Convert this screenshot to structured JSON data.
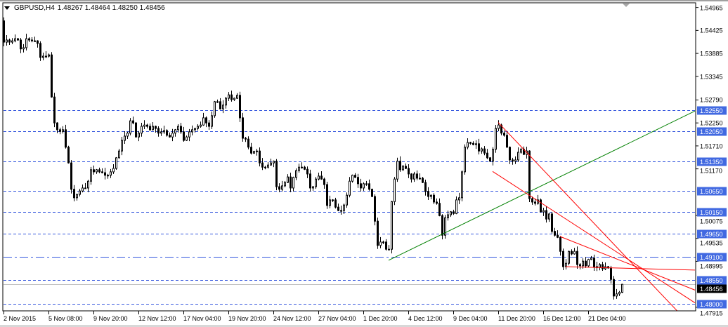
{
  "header": {
    "symbol_timeframe": "GBPUSD,H4",
    "ohlc": "1.48267 1.48464 1.48250 1.48456"
  },
  "colors": {
    "level_line": "#3355dd",
    "level_label_bg": "#4169e1",
    "trendline_green": "#008000",
    "trendline_red": "#ff0000",
    "current_price_bg": "#000000",
    "bull_body": "#ffffff",
    "bear_body": "#000000"
  },
  "chart_data": {
    "type": "candlestick",
    "symbol": "GBPUSD",
    "timeframe": "H4",
    "last_bar": {
      "open": 1.48267,
      "high": 1.48464,
      "low": 1.4825,
      "close": 1.48456
    },
    "first_open": 1.5465,
    "closes": [
      1.5415,
      1.542,
      1.5415,
      1.5418,
      1.5423,
      1.542,
      1.5399,
      1.5402,
      1.5423,
      1.542,
      1.5418,
      1.5418,
      1.5412,
      1.5379,
      1.5382,
      1.5382,
      1.5385,
      1.5286,
      1.5225,
      1.5209,
      1.5205,
      1.5209,
      1.5168,
      1.5131,
      1.5069,
      1.5049,
      1.5057,
      1.5065,
      1.5072,
      1.5072,
      1.5088,
      1.5115,
      1.511,
      1.5115,
      1.511,
      1.5108,
      1.5102,
      1.5102,
      1.511,
      1.5118,
      1.5143,
      1.5159,
      1.5184,
      1.5194,
      1.5201,
      1.523,
      1.5225,
      1.5192,
      1.5201,
      1.5217,
      1.522,
      1.5217,
      1.5209,
      1.5217,
      1.5212,
      1.5201,
      1.5204,
      1.5207,
      1.5196,
      1.5192,
      1.5201,
      1.5209,
      1.5217,
      1.5204,
      1.5184,
      1.5192,
      1.5204,
      1.5209,
      1.5212,
      1.5217,
      1.522,
      1.5237,
      1.5225,
      1.5217,
      1.5242,
      1.5275,
      1.5275,
      1.5258,
      1.5267,
      1.5283,
      1.5291,
      1.528,
      1.5283,
      1.529,
      1.5237,
      1.5189,
      1.5187,
      1.5168,
      1.5154,
      1.5158,
      1.5159,
      1.5131,
      1.5121,
      1.5121,
      1.5126,
      1.5131,
      1.5135,
      1.5075,
      1.5069,
      1.5077,
      1.5085,
      1.5098,
      1.5072,
      1.5097,
      1.5113,
      1.5121,
      1.5121,
      1.5116,
      1.5105,
      1.5072,
      1.5075,
      1.5093,
      1.51,
      1.5093,
      1.508,
      1.5031,
      1.5044,
      1.5044,
      1.5027,
      1.5019,
      1.5019,
      1.5032,
      1.5055,
      1.5088,
      1.5102,
      1.5097,
      1.5082,
      1.5072,
      1.5082,
      1.5082,
      1.5069,
      1.5052,
      1.4994,
      1.4937,
      1.4945,
      1.4945,
      1.4928,
      1.4928,
      1.504,
      1.5093,
      1.5135,
      1.5115,
      1.5123,
      1.5118,
      1.5105,
      1.5093,
      1.5105,
      1.5095,
      1.5095,
      1.5085,
      1.5064,
      1.5052,
      1.5055,
      1.5039,
      1.5036,
      1.5007,
      1.4961,
      1.5002,
      1.5009,
      1.5016,
      1.5012,
      1.5044,
      1.5049,
      1.511,
      1.5168,
      1.5179,
      1.5177,
      1.5174,
      1.5176,
      1.5159,
      1.5164,
      1.5154,
      1.5143,
      1.5135,
      1.5163,
      1.5212,
      1.522,
      1.5201,
      1.5196,
      1.5168,
      1.5138,
      1.5135,
      1.5138,
      1.5156,
      1.5163,
      1.5151,
      1.5159,
      1.5047,
      1.5039,
      1.5036,
      1.5044,
      1.5016,
      1.5019,
      1.4999,
      1.5011,
      1.497,
      1.4961,
      1.4956,
      1.4923,
      1.4887,
      1.4895,
      1.4923,
      1.4917,
      1.4923,
      1.4892,
      1.4889,
      1.49,
      1.4889,
      1.4904,
      1.4907,
      1.4887,
      1.4885,
      1.4892,
      1.4882,
      1.4887,
      1.4884,
      1.4857,
      1.4818,
      1.4823,
      1.48267,
      1.48456
    ],
    "y_ticks": [
      "1.54965",
      "1.54425",
      "1.53885",
      "1.53345",
      "1.52790",
      "1.52250",
      "1.51710",
      "1.51170",
      "1.50075",
      "1.49535",
      "1.48995",
      "1.47915"
    ],
    "x_ticks": [
      "2 Nov 2015",
      "5 Nov 08:00",
      "9 Nov 20:00",
      "12 Nov 12:00",
      "17 Nov 04:00",
      "19 Nov 20:00",
      "24 Nov 12:00",
      "27 Nov 04:00",
      "1 Dec 20:00",
      "4 Dec 12:00",
      "9 Dec 04:00",
      "11 Dec 20:00",
      "16 Dec 12:00",
      "21 Dec 04:00"
    ],
    "horizontal_levels": [
      {
        "price": "1.52550",
        "style": "dash"
      },
      {
        "price": "1.52050",
        "style": "dash"
      },
      {
        "price": "1.51350",
        "style": "dash"
      },
      {
        "price": "1.50650",
        "style": "dash"
      },
      {
        "price": "1.50150",
        "style": "dash"
      },
      {
        "price": "1.49650",
        "style": "dash"
      },
      {
        "price": "1.49100",
        "style": "dash-dot"
      },
      {
        "price": "1.48550",
        "style": "dash"
      },
      {
        "price": "1.48000",
        "style": "dash"
      }
    ],
    "current_price": "1.48456",
    "trendlines": [
      {
        "color": "green",
        "from": {
          "bar": 137,
          "price": 1.4902
        },
        "to": {
          "bar": 246,
          "price": 1.5253
        }
      },
      {
        "color": "red",
        "from": {
          "bar": 176,
          "price": 1.5226
        },
        "to": {
          "bar": 246,
          "price": 1.4739
        }
      },
      {
        "color": "red",
        "from": {
          "bar": 174,
          "price": 1.5111
        },
        "to": {
          "bar": 246,
          "price": 1.4802
        }
      },
      {
        "color": "red",
        "from": {
          "bar": 198,
          "price": 1.4958
        },
        "to": {
          "bar": 246,
          "price": 1.4832
        }
      },
      {
        "color": "red",
        "from": {
          "bar": 200,
          "price": 1.4887
        },
        "to": {
          "bar": 246,
          "price": 1.4879
        }
      }
    ],
    "grid": false
  }
}
